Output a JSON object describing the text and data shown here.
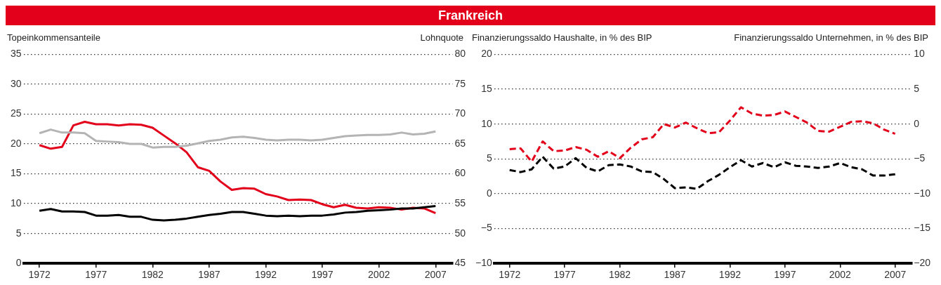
{
  "chart_data": [
    {
      "type": "line",
      "title": "Frankreich",
      "ylabel": "Topeinkommensanteile",
      "y2label": "Lohnquote",
      "grid": "y",
      "marker": "none",
      "line_style": "solid",
      "x": [
        1972,
        1973,
        1974,
        1975,
        1976,
        1977,
        1978,
        1979,
        1980,
        1981,
        1982,
        1983,
        1984,
        1985,
        1986,
        1987,
        1988,
        1989,
        1990,
        1991,
        1992,
        1993,
        1994,
        1995,
        1996,
        1997,
        1998,
        1999,
        2000,
        2001,
        2002,
        2003,
        2004,
        2005,
        2006,
        2007
      ],
      "xlim": [
        1970.6,
        2008.5
      ],
      "xticks": [
        1972,
        1977,
        1982,
        1987,
        1992,
        1997,
        2002,
        2007
      ],
      "ylim": [
        0,
        35
      ],
      "yticks": [
        0,
        5,
        10,
        15,
        20,
        25,
        30,
        35
      ],
      "y2lim": [
        45,
        80
      ],
      "y2ticks": [
        45,
        50,
        55,
        60,
        65,
        70,
        75,
        80
      ],
      "series": [
        {
          "color": "#b4b4b4",
          "values": [
            21.8,
            22.4,
            21.9,
            21.9,
            21.8,
            20.5,
            20.4,
            20.3,
            20.0,
            20.0,
            19.4,
            19.5,
            19.5,
            19.7,
            20.1,
            20.5,
            20.7,
            21.1,
            21.2,
            21.0,
            20.7,
            20.6,
            20.7,
            20.7,
            20.6,
            20.7,
            21.0,
            21.3,
            21.4,
            21.5,
            21.5,
            21.6,
            21.9,
            21.6,
            21.7,
            22.1
          ]
        },
        {
          "color": "#000000",
          "values": [
            8.8,
            9.1,
            8.7,
            8.7,
            8.6,
            8.0,
            8.0,
            8.1,
            7.8,
            7.8,
            7.3,
            7.2,
            7.3,
            7.5,
            7.8,
            8.1,
            8.3,
            8.6,
            8.6,
            8.3,
            8.0,
            7.9,
            8.0,
            7.9,
            8.0,
            8.0,
            8.2,
            8.5,
            8.6,
            8.8,
            8.9,
            9.0,
            9.2,
            9.2,
            9.4,
            9.6
          ]
        },
        {
          "color": "#e2001a",
          "axis": "y2",
          "values": [
            64.8,
            64.2,
            64.5,
            68.1,
            68.7,
            68.3,
            68.3,
            68.1,
            68.3,
            68.2,
            67.7,
            66.4,
            65.1,
            63.6,
            61.1,
            60.5,
            58.7,
            57.3,
            57.6,
            57.5,
            56.6,
            56.2,
            55.6,
            55.7,
            55.6,
            54.9,
            54.4,
            54.8,
            54.3,
            54.2,
            54.4,
            54.3,
            54.0,
            54.3,
            54.2,
            53.4
          ]
        }
      ]
    },
    {
      "type": "line",
      "ylabel": "Finanzierungssaldo Haushalte, in % des BIP",
      "y2label": "Finanzierungssaldo Unternehmen, in % des BIP",
      "grid": "y",
      "marker": "none",
      "line_style": "dashed",
      "x": [
        1972,
        1973,
        1974,
        1975,
        1976,
        1977,
        1978,
        1979,
        1980,
        1981,
        1982,
        1983,
        1984,
        1985,
        1986,
        1987,
        1988,
        1989,
        1990,
        1991,
        1992,
        1993,
        1994,
        1995,
        1996,
        1997,
        1998,
        1999,
        2000,
        2001,
        2002,
        2003,
        2004,
        2005,
        2006,
        2007
      ],
      "xlim": [
        1970.6,
        2008.5
      ],
      "xticks": [
        1972,
        1977,
        1982,
        1987,
        1992,
        1997,
        2002,
        2007
      ],
      "ylim": [
        -10,
        20
      ],
      "yticks": [
        {
          "value": -10,
          "label": "−10"
        },
        {
          "value": -5,
          "label": "−5"
        },
        0,
        5,
        10,
        15,
        20
      ],
      "y2lim": [
        -20,
        10
      ],
      "y2ticks": [
        {
          "value": -20,
          "label": "−20"
        },
        {
          "value": -15,
          "label": "−15"
        },
        {
          "value": -10,
          "label": "−10"
        },
        {
          "value": -5,
          "label": "−5"
        },
        0,
        5,
        10
      ],
      "series": [
        {
          "color": "#e2001a",
          "values": [
            6.4,
            6.5,
            4.6,
            7.5,
            6.1,
            6.2,
            6.7,
            6.3,
            5.3,
            6.1,
            5.1,
            6.6,
            7.8,
            8.1,
            10.0,
            9.5,
            10.2,
            9.4,
            8.7,
            8.8,
            10.5,
            12.4,
            11.5,
            11.2,
            11.3,
            11.8,
            11.0,
            10.2,
            9.0,
            8.9,
            9.6,
            10.3,
            10.4,
            10.1,
            9.2,
            8.6
          ]
        },
        {
          "color": "#000000",
          "axis": "y2",
          "values": [
            -6.6,
            -6.9,
            -6.5,
            -4.7,
            -6.4,
            -6.1,
            -4.9,
            -6.3,
            -6.8,
            -5.9,
            -5.8,
            -6.1,
            -6.8,
            -6.9,
            -7.9,
            -9.2,
            -9.1,
            -9.3,
            -8.2,
            -7.3,
            -6.2,
            -5.2,
            -6.1,
            -5.6,
            -6.2,
            -5.5,
            -6.0,
            -6.1,
            -6.3,
            -6.1,
            -5.6,
            -6.2,
            -6.5,
            -7.4,
            -7.4,
            -7.2
          ]
        }
      ]
    }
  ]
}
